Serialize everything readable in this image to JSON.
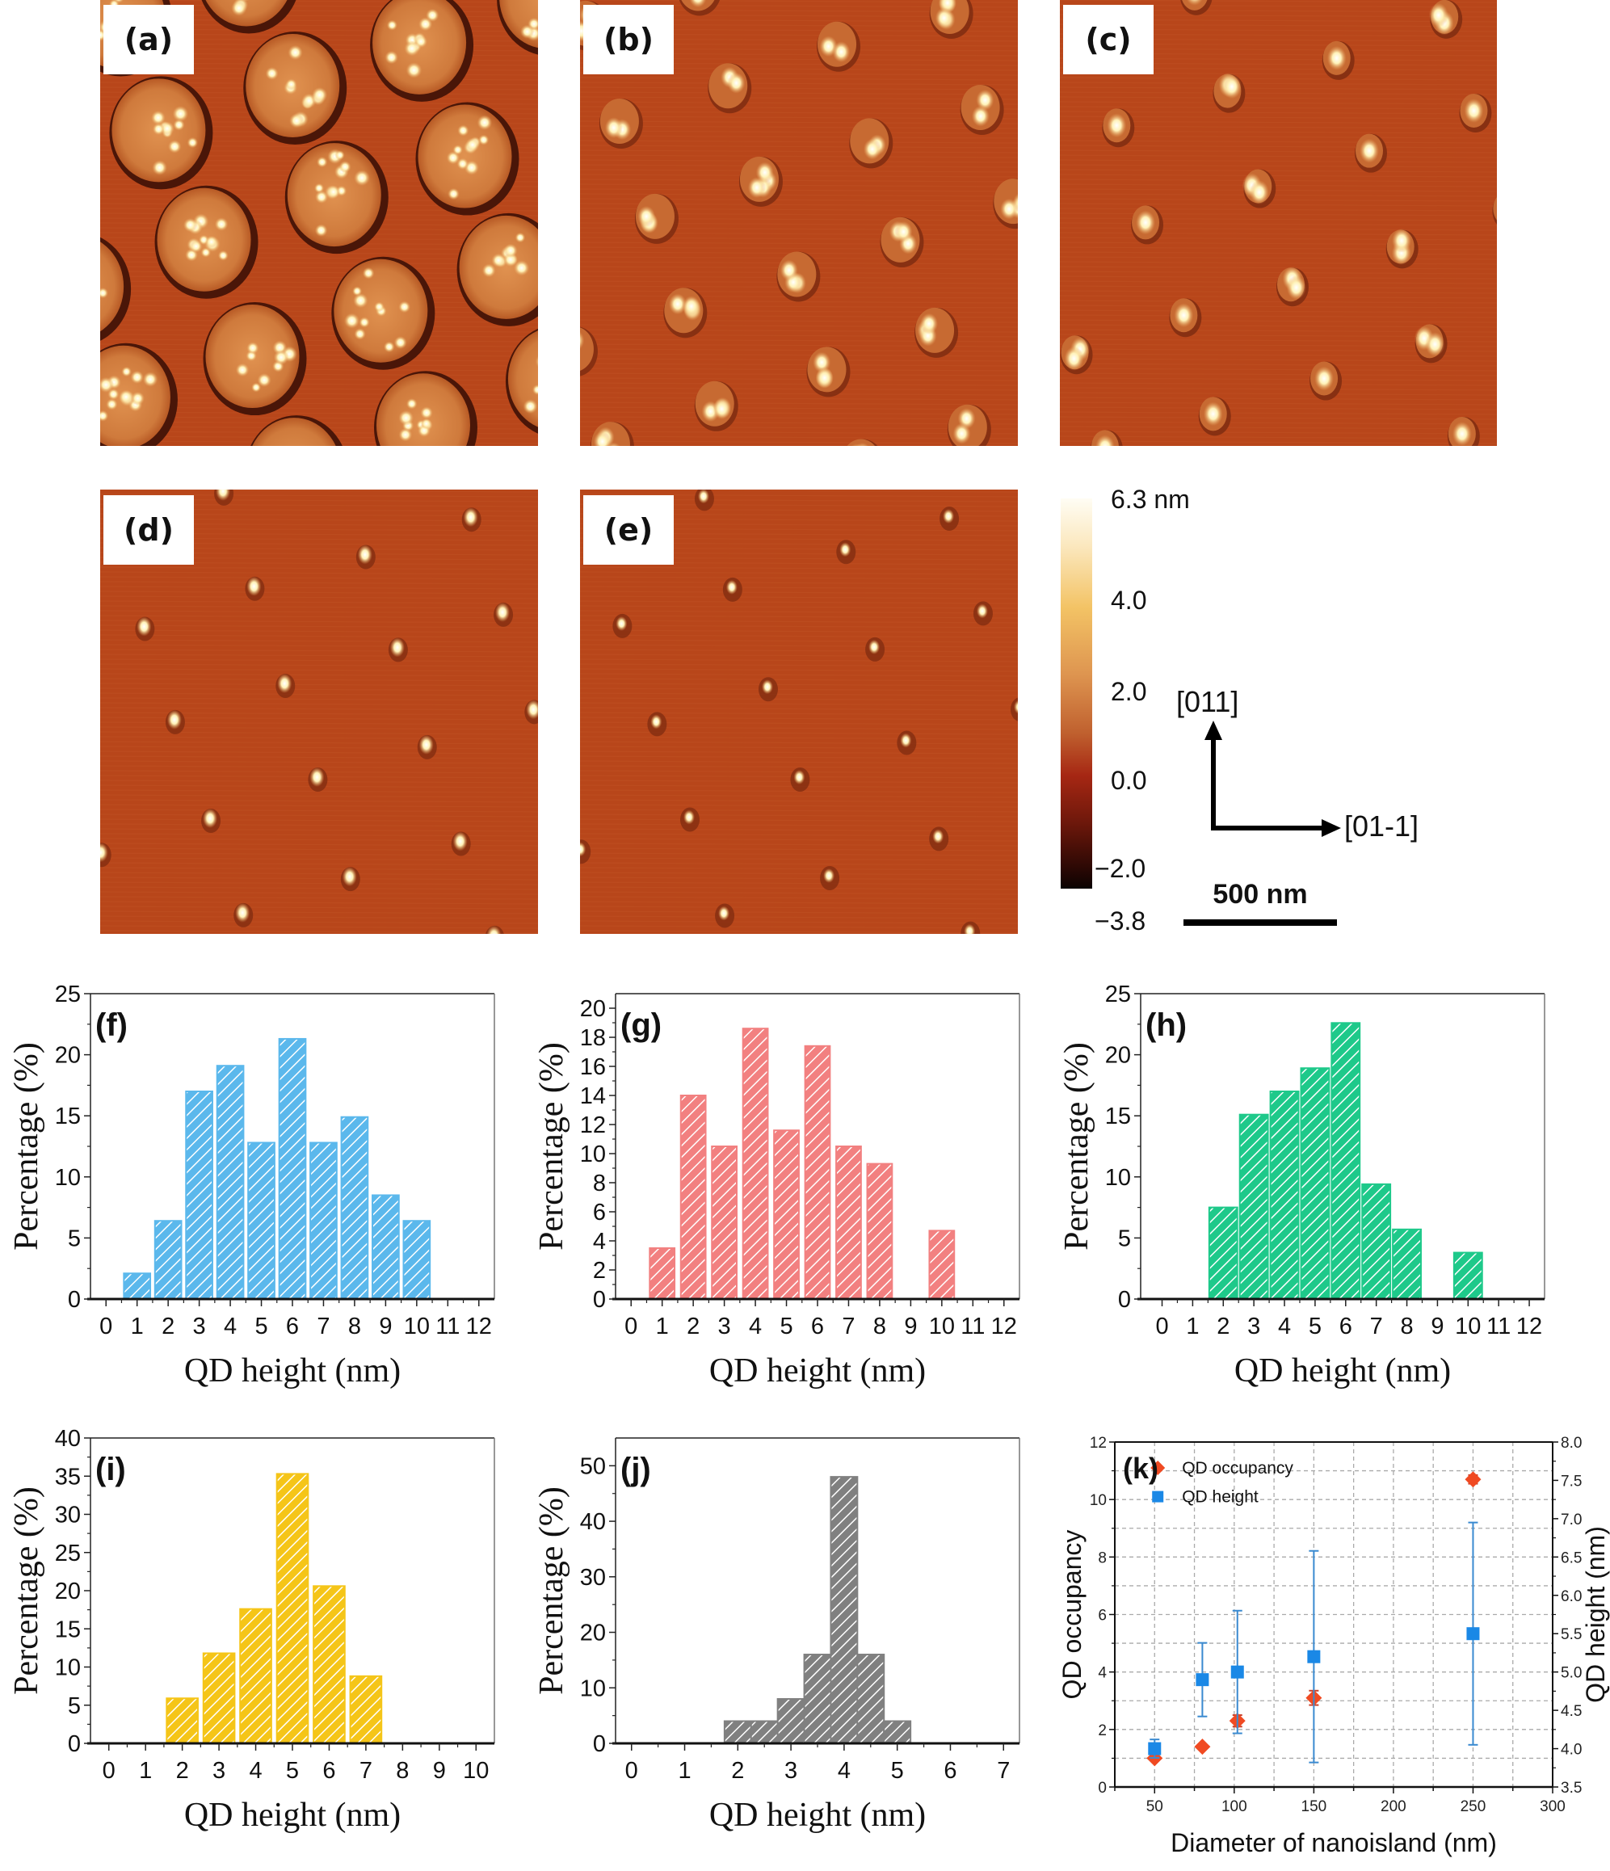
{
  "figure": {
    "afm_panels": [
      {
        "id": "a",
        "label": "(a)",
        "pattern": "islands-with-many-dots"
      },
      {
        "id": "b",
        "label": "(b)",
        "pattern": "small-islands-2-4-dots"
      },
      {
        "id": "c",
        "label": "(c)",
        "pattern": "small-islands-1-2-dots"
      },
      {
        "id": "d",
        "label": "(d)",
        "pattern": "single-dots"
      },
      {
        "id": "e",
        "label": "(e)",
        "pattern": "single-small-dots"
      }
    ],
    "colorbar": {
      "labels": [
        "6.3 nm",
        "4.0",
        "2.0",
        "0.0",
        "−2.0",
        "−3.8"
      ],
      "values": [
        6.3,
        4.0,
        2.0,
        0.0,
        -2.0,
        -3.8
      ],
      "range": [
        -3.8,
        6.3
      ],
      "colormap": "afmhot"
    },
    "orientation": {
      "vertical_label": "[011]",
      "horizontal_label": "[01-1]"
    },
    "scale_bar": {
      "label": "500 nm"
    },
    "colors": {
      "afm_background": "#b8461a",
      "afm_ring": "#4a1608",
      "afm_island": "#cf7a3c",
      "afm_dot": "#fff2b8"
    }
  },
  "chart_data": [
    {
      "id": "f",
      "type": "bar",
      "panel_label": "(f)",
      "xlabel": "QD height (nm)",
      "ylabel": "Percentage (%)",
      "xlim": [
        -0.5,
        12.5
      ],
      "ylim": [
        0,
        25
      ],
      "xticks": [
        0,
        1,
        2,
        3,
        4,
        5,
        6,
        7,
        8,
        9,
        10,
        11,
        12
      ],
      "yticks": [
        0,
        5,
        10,
        15,
        20,
        25
      ],
      "bin_width": 0.85,
      "x": [
        1,
        2,
        3,
        4,
        5,
        6,
        7,
        8,
        9,
        10
      ],
      "values": [
        2.1,
        6.4,
        17.0,
        19.1,
        12.8,
        21.3,
        12.8,
        14.9,
        8.5,
        6.4
      ],
      "color": "#5bb8ec"
    },
    {
      "id": "g",
      "type": "bar",
      "panel_label": "(g)",
      "xlabel": "QD height (nm)",
      "ylabel": "Percentage (%)",
      "xlim": [
        -0.5,
        12.5
      ],
      "ylim": [
        0,
        21
      ],
      "xticks": [
        0,
        1,
        2,
        3,
        4,
        5,
        6,
        7,
        8,
        9,
        10,
        11,
        12
      ],
      "yticks": [
        0,
        2,
        4,
        6,
        8,
        10,
        12,
        14,
        16,
        18,
        20
      ],
      "bin_width": 0.8,
      "x": [
        1,
        2,
        3,
        4,
        5,
        6,
        7,
        8,
        10
      ],
      "values": [
        3.5,
        14.0,
        10.5,
        18.6,
        11.6,
        17.4,
        10.5,
        9.3,
        4.7
      ],
      "color": "#f28080"
    },
    {
      "id": "h",
      "type": "bar",
      "panel_label": "(h)",
      "xlabel": "QD height (nm)",
      "ylabel": "Percentage (%)",
      "xlim": [
        -0.7,
        12.5
      ],
      "ylim": [
        0,
        25
      ],
      "xticks": [
        0,
        1,
        2,
        3,
        4,
        5,
        6,
        7,
        8,
        9,
        10,
        11,
        12
      ],
      "yticks": [
        0,
        5,
        10,
        15,
        20,
        25
      ],
      "bin_width": 0.92,
      "x": [
        2,
        3,
        4,
        5,
        6,
        7,
        8,
        10
      ],
      "values": [
        7.5,
        15.1,
        17.0,
        18.9,
        22.6,
        9.4,
        5.7,
        3.8
      ],
      "color": "#1ec98a"
    },
    {
      "id": "i",
      "type": "bar",
      "panel_label": "(i)",
      "xlabel": "QD height (nm)",
      "ylabel": "Percentage (%)",
      "xlim": [
        -0.5,
        10.5
      ],
      "ylim": [
        0,
        40
      ],
      "xticks": [
        0,
        1,
        2,
        3,
        4,
        5,
        6,
        7,
        8,
        9,
        10
      ],
      "yticks": [
        0,
        5,
        10,
        15,
        20,
        25,
        30,
        35,
        40
      ],
      "bin_width": 0.85,
      "x": [
        2,
        3,
        4,
        5,
        6,
        7
      ],
      "values": [
        5.9,
        11.8,
        17.6,
        35.3,
        20.6,
        8.8
      ],
      "color": "#f5c518"
    },
    {
      "id": "j",
      "type": "bar",
      "panel_label": "(j)",
      "xlabel": "QD height (nm)",
      "ylabel": "Percentage (%)",
      "xlim": [
        -0.3,
        7.3
      ],
      "ylim": [
        0,
        55
      ],
      "xticks": [
        0,
        1,
        2,
        3,
        4,
        5,
        6,
        7
      ],
      "yticks": [
        0,
        10,
        20,
        30,
        40,
        50
      ],
      "bin_width": 0.5,
      "x": [
        2.0,
        2.5,
        3.0,
        3.5,
        4.0,
        4.5,
        5.0
      ],
      "values": [
        4,
        4,
        8,
        16,
        48,
        16,
        4
      ],
      "color": "#808080"
    },
    {
      "id": "k",
      "type": "scatter",
      "panel_label": "(k)",
      "xlabel": "Diameter of nanoisland (nm)",
      "ylabel": "QD occupancy",
      "ylabel_right": "QD height (nm)",
      "xlim": [
        25,
        300
      ],
      "ylim": [
        0,
        12
      ],
      "ylim_right": [
        3.5,
        8.0
      ],
      "xticks": [
        50,
        100,
        150,
        200,
        250,
        300
      ],
      "yticks": [
        0,
        2,
        4,
        6,
        8,
        10,
        12
      ],
      "yticks_right": [
        3.5,
        4.0,
        4.5,
        5.0,
        5.5,
        6.0,
        6.5,
        7.0,
        7.5,
        8.0
      ],
      "grid": true,
      "legend_position": "top-left",
      "series": [
        {
          "name": "QD occupancy",
          "axis": "left",
          "marker": "diamond",
          "color": "#f04a22",
          "x": [
            50,
            80,
            102,
            150,
            250
          ],
          "y": [
            1.0,
            1.4,
            2.3,
            3.1,
            10.7
          ],
          "err": [
            0.0,
            0.0,
            0.2,
            0.25,
            0.15
          ]
        },
        {
          "name": "QD height",
          "axis": "right",
          "marker": "square",
          "color": "#1a88e6",
          "x": [
            50,
            80,
            102,
            150,
            250
          ],
          "y": [
            4.0,
            4.9,
            5.0,
            5.2,
            5.5
          ],
          "err": [
            0.12,
            0.48,
            0.8,
            1.38,
            1.45
          ]
        }
      ]
    }
  ]
}
